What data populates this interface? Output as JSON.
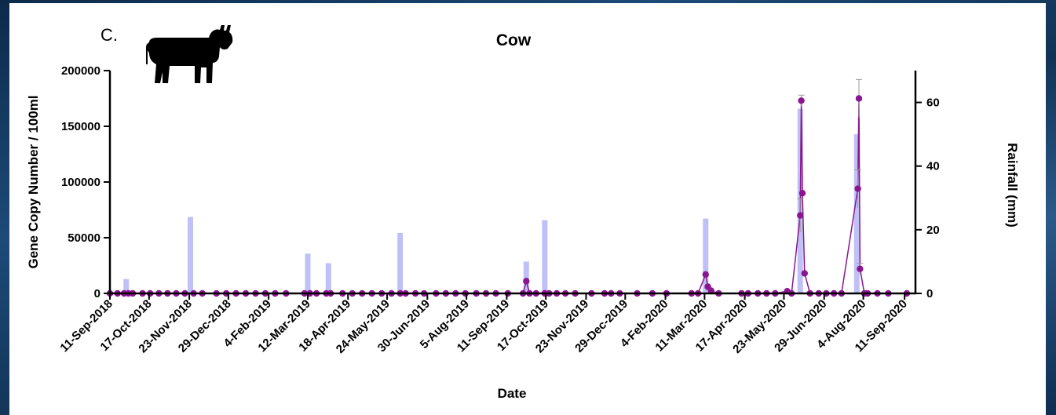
{
  "panel_letter": "C.",
  "icon": "cow-icon",
  "colors": {
    "rain_bar": "#bfc0f5",
    "gene_series": "#8a168f",
    "axis": "#000000"
  },
  "chart_data": {
    "type": "bar+line",
    "title": "Cow",
    "xlabel": "Date",
    "ylabel": "Gene Copy Number / 100ml",
    "y2label": "Rainfall (mm)",
    "ylim": [
      0,
      200000
    ],
    "y2lim": [
      0,
      70
    ],
    "xlim": [
      "2018-09-11",
      "2020-09-21"
    ],
    "yticks": [
      "0",
      "50000",
      "100000",
      "150000",
      "200000"
    ],
    "y2ticks": [
      "0",
      "20",
      "40",
      "60"
    ],
    "xticks": [
      "11-Sep-2018",
      "17-Oct-2018",
      "23-Nov-2018",
      "29-Dec-2018",
      "4-Feb-2019",
      "12-Mar-2019",
      "18-Apr-2019",
      "24-May-2019",
      "30-Jun-2019",
      "5-Aug-2019",
      "11-Sep-2019",
      "17-Oct-2019",
      "23-Nov-2019",
      "29-Dec-2019",
      "4-Feb-2020",
      "11-Mar-2020",
      "17-Apr-2020",
      "23-May-2020",
      "29-Jun-2020",
      "4-Aug-2020",
      "11-Sep-2020"
    ],
    "grid": false,
    "series": [
      {
        "name": "",
        "kind": "bar",
        "axis": "right",
        "points": [
          {
            "x": "2018-09-26",
            "y": 4.5
          },
          {
            "x": "2018-11-24",
            "y": 24
          },
          {
            "x": "2019-03-12",
            "y": 12.5
          },
          {
            "x": "2019-03-31",
            "y": 9.5
          },
          {
            "x": "2019-06-05",
            "y": 19
          },
          {
            "x": "2019-09-29",
            "y": 10
          },
          {
            "x": "2019-10-16",
            "y": 23
          },
          {
            "x": "2020-03-12",
            "y": 23.5
          },
          {
            "x": "2020-06-07",
            "y": 58
          },
          {
            "x": "2020-07-29",
            "y": 50
          }
        ]
      },
      {
        "name": "",
        "kind": "line",
        "axis": "left",
        "points": [
          {
            "x": "2018-09-11",
            "y": 0,
            "err": 0
          },
          {
            "x": "2018-09-18",
            "y": 0,
            "err": 0
          },
          {
            "x": "2018-09-24",
            "y": 0,
            "err": 0
          },
          {
            "x": "2018-09-28",
            "y": 0,
            "err": 0
          },
          {
            "x": "2018-10-02",
            "y": 0,
            "err": 0
          },
          {
            "x": "2018-10-11",
            "y": 0,
            "err": 0
          },
          {
            "x": "2018-10-18",
            "y": 0,
            "err": 0
          },
          {
            "x": "2018-10-26",
            "y": 0,
            "err": 0
          },
          {
            "x": "2018-11-03",
            "y": 0,
            "err": 0
          },
          {
            "x": "2018-11-11",
            "y": 0,
            "err": 0
          },
          {
            "x": "2018-11-19",
            "y": 0,
            "err": 0
          },
          {
            "x": "2018-11-27",
            "y": 0,
            "err": 0
          },
          {
            "x": "2018-12-05",
            "y": 0,
            "err": 0
          },
          {
            "x": "2018-12-18",
            "y": 0,
            "err": 0
          },
          {
            "x": "2018-12-27",
            "y": 0,
            "err": 0
          },
          {
            "x": "2019-01-05",
            "y": 0,
            "err": 0
          },
          {
            "x": "2019-01-14",
            "y": 0,
            "err": 0
          },
          {
            "x": "2019-01-23",
            "y": 0,
            "err": 0
          },
          {
            "x": "2019-02-01",
            "y": 0,
            "err": 0
          },
          {
            "x": "2019-02-10",
            "y": 0,
            "err": 0
          },
          {
            "x": "2019-02-20",
            "y": 0,
            "err": 0
          },
          {
            "x": "2019-03-09",
            "y": 0,
            "err": 0
          },
          {
            "x": "2019-03-14",
            "y": 0,
            "err": 0
          },
          {
            "x": "2019-03-20",
            "y": 0,
            "err": 0
          },
          {
            "x": "2019-03-29",
            "y": 0,
            "err": 0
          },
          {
            "x": "2019-04-02",
            "y": 0,
            "err": 0
          },
          {
            "x": "2019-04-13",
            "y": 0,
            "err": 0
          },
          {
            "x": "2019-04-22",
            "y": 0,
            "err": 0
          },
          {
            "x": "2019-05-01",
            "y": 0,
            "err": 0
          },
          {
            "x": "2019-05-10",
            "y": 0,
            "err": 0
          },
          {
            "x": "2019-05-19",
            "y": 0,
            "err": 0
          },
          {
            "x": "2019-05-28",
            "y": 0,
            "err": 0
          },
          {
            "x": "2019-06-05",
            "y": 0,
            "err": 0
          },
          {
            "x": "2019-06-10",
            "y": 0,
            "err": 0
          },
          {
            "x": "2019-06-19",
            "y": 0,
            "err": 0
          },
          {
            "x": "2019-06-27",
            "y": 0,
            "err": 0
          },
          {
            "x": "2019-07-08",
            "y": 0,
            "err": 0
          },
          {
            "x": "2019-07-17",
            "y": 0,
            "err": 0
          },
          {
            "x": "2019-07-26",
            "y": 0,
            "err": 0
          },
          {
            "x": "2019-08-04",
            "y": 0,
            "err": 0
          },
          {
            "x": "2019-08-14",
            "y": 0,
            "err": 0
          },
          {
            "x": "2019-08-23",
            "y": 0,
            "err": 0
          },
          {
            "x": "2019-09-01",
            "y": 0,
            "err": 0
          },
          {
            "x": "2019-09-12",
            "y": 0,
            "err": 0
          },
          {
            "x": "2019-09-26",
            "y": 0,
            "err": 0
          },
          {
            "x": "2019-09-29",
            "y": 11000,
            "err": 0
          },
          {
            "x": "2019-10-02",
            "y": 0,
            "err": 0
          },
          {
            "x": "2019-10-08",
            "y": 0,
            "err": 0
          },
          {
            "x": "2019-10-16",
            "y": 0,
            "err": 0
          },
          {
            "x": "2019-10-20",
            "y": 0,
            "err": 0
          },
          {
            "x": "2019-10-27",
            "y": 0,
            "err": 0
          },
          {
            "x": "2019-11-04",
            "y": 0,
            "err": 0
          },
          {
            "x": "2019-11-13",
            "y": 0,
            "err": 0
          },
          {
            "x": "2019-11-28",
            "y": 0,
            "err": 0
          },
          {
            "x": "2019-12-10",
            "y": 0,
            "err": 0
          },
          {
            "x": "2019-12-16",
            "y": 0,
            "err": 0
          },
          {
            "x": "2019-12-24",
            "y": 0,
            "err": 0
          },
          {
            "x": "2020-01-09",
            "y": 0,
            "err": 0
          },
          {
            "x": "2020-01-23",
            "y": 0,
            "err": 0
          },
          {
            "x": "2020-02-05",
            "y": 0,
            "err": 0
          },
          {
            "x": "2020-02-28",
            "y": 0,
            "err": 0
          },
          {
            "x": "2020-03-05",
            "y": 0,
            "err": 0
          },
          {
            "x": "2020-03-12",
            "y": 17000,
            "err": 0
          },
          {
            "x": "2020-03-14",
            "y": 6000,
            "err": 0
          },
          {
            "x": "2020-03-17",
            "y": 2500,
            "err": 0
          },
          {
            "x": "2020-03-24",
            "y": 0,
            "err": 0
          },
          {
            "x": "2020-04-14",
            "y": 0,
            "err": 0
          },
          {
            "x": "2020-04-20",
            "y": 0,
            "err": 0
          },
          {
            "x": "2020-04-29",
            "y": 0,
            "err": 0
          },
          {
            "x": "2020-05-07",
            "y": 0,
            "err": 0
          },
          {
            "x": "2020-05-15",
            "y": 0,
            "err": 0
          },
          {
            "x": "2020-05-26",
            "y": 2000,
            "err": 0
          },
          {
            "x": "2020-05-30",
            "y": 0,
            "err": 0
          },
          {
            "x": "2020-06-07",
            "y": 70000,
            "err": 15000
          },
          {
            "x": "2020-06-08",
            "y": 173000,
            "err": 5000
          },
          {
            "x": "2020-06-09",
            "y": 90000,
            "err": 0
          },
          {
            "x": "2020-06-11",
            "y": 18000,
            "err": 0
          },
          {
            "x": "2020-06-16",
            "y": 0,
            "err": 0
          },
          {
            "x": "2020-06-24",
            "y": 0,
            "err": 0
          },
          {
            "x": "2020-07-01",
            "y": 0,
            "err": 0
          },
          {
            "x": "2020-07-08",
            "y": 0,
            "err": 0
          },
          {
            "x": "2020-07-15",
            "y": 0,
            "err": 0
          },
          {
            "x": "2020-07-30",
            "y": 94000,
            "err": 17000
          },
          {
            "x": "2020-07-31",
            "y": 175000,
            "err": 17000
          },
          {
            "x": "2020-08-01",
            "y": 22000,
            "err": 5000
          },
          {
            "x": "2020-08-05",
            "y": 0,
            "err": 0
          },
          {
            "x": "2020-08-08",
            "y": 0,
            "err": 0
          },
          {
            "x": "2020-08-17",
            "y": 0,
            "err": 0
          },
          {
            "x": "2020-08-27",
            "y": 0,
            "err": 0
          },
          {
            "x": "2020-09-13",
            "y": 0,
            "err": 0
          }
        ]
      }
    ]
  }
}
